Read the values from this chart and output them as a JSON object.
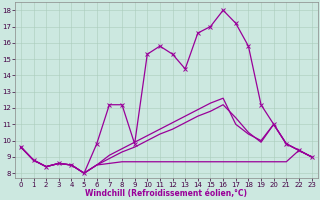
{
  "xlabel": "Windchill (Refroidissement éolien,°C)",
  "background_color": "#cce8e0",
  "line_color": "#990099",
  "xlim": [
    -0.5,
    23.5
  ],
  "ylim": [
    7.7,
    18.5
  ],
  "xticks": [
    0,
    1,
    2,
    3,
    4,
    5,
    6,
    7,
    8,
    9,
    10,
    11,
    12,
    13,
    14,
    15,
    16,
    17,
    18,
    19,
    20,
    21,
    22,
    23
  ],
  "yticks": [
    8,
    9,
    10,
    11,
    12,
    13,
    14,
    15,
    16,
    17,
    18
  ],
  "curve_main": [
    9.6,
    8.8,
    8.4,
    8.6,
    8.5,
    8.0,
    9.8,
    12.2,
    12.2,
    9.8,
    15.3,
    15.8,
    15.3,
    14.4,
    16.6,
    17.0,
    18.0,
    17.2,
    15.8,
    12.2,
    11.0,
    9.8,
    9.4,
    9.0
  ],
  "curve_flat": [
    9.6,
    8.8,
    8.4,
    8.6,
    8.5,
    8.0,
    8.5,
    8.6,
    8.7,
    8.7,
    8.7,
    8.7,
    8.7,
    8.7,
    8.7,
    8.7,
    8.7,
    8.7,
    8.7,
    8.7,
    8.7,
    8.7,
    9.4,
    9.0
  ],
  "curve_rise1": [
    9.6,
    8.8,
    8.4,
    8.6,
    8.5,
    8.0,
    8.5,
    8.9,
    9.3,
    9.6,
    10.0,
    10.4,
    10.7,
    11.1,
    11.5,
    11.8,
    12.2,
    11.4,
    10.5,
    9.9,
    11.0,
    9.8,
    9.4,
    9.0
  ],
  "curve_rise2": [
    9.6,
    8.8,
    8.4,
    8.6,
    8.5,
    8.0,
    8.5,
    9.1,
    9.5,
    9.9,
    10.3,
    10.7,
    11.1,
    11.5,
    11.9,
    12.3,
    12.6,
    11.0,
    10.4,
    10.0,
    11.0,
    9.8,
    9.4,
    9.0
  ],
  "tick_fontsize": 5,
  "xlabel_fontsize": 5.5,
  "linewidth": 0.9,
  "marker_size": 2.8
}
